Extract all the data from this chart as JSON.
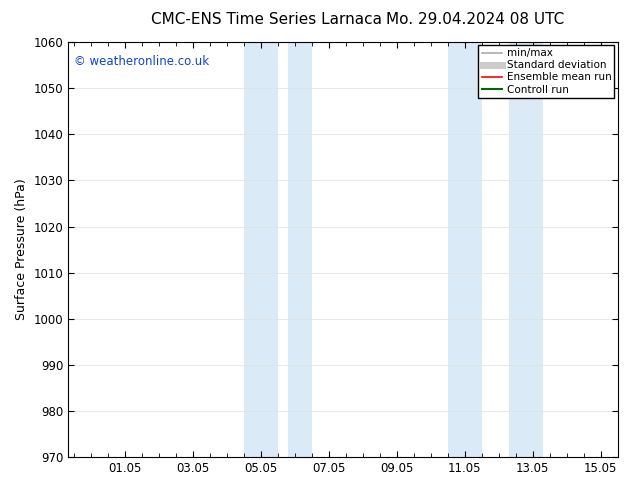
{
  "title_left": "CMC-ENS Time Series Larnaca",
  "title_right": "Mo. 29.04.2024 08 UTC",
  "ylabel": "Surface Pressure (hPa)",
  "ylim": [
    970,
    1060
  ],
  "yticks": [
    970,
    980,
    990,
    1000,
    1010,
    1020,
    1030,
    1040,
    1050,
    1060
  ],
  "xlim": [
    29.333,
    45.5
  ],
  "xtick_labels": [
    "01.05",
    "03.05",
    "05.05",
    "07.05",
    "09.05",
    "11.05",
    "13.05",
    "15.05"
  ],
  "xtick_positions": [
    31.0,
    33.0,
    35.0,
    37.0,
    39.0,
    41.0,
    43.0,
    45.0
  ],
  "shaded_bands": [
    {
      "x_start": 34.5,
      "x_end": 35.5
    },
    {
      "x_start": 35.8,
      "x_end": 36.5
    },
    {
      "x_start": 40.5,
      "x_end": 41.5
    },
    {
      "x_start": 42.3,
      "x_end": 43.3
    }
  ],
  "shaded_color": "#daeaf7",
  "watermark_text": "© weatheronline.co.uk",
  "watermark_color": "#1144cc",
  "legend_items": [
    {
      "label": "min/max",
      "color": "#aaaaaa",
      "lw": 1.2
    },
    {
      "label": "Standard deviation",
      "color": "#cccccc",
      "lw": 5
    },
    {
      "label": "Ensemble mean run",
      "color": "#ff0000",
      "lw": 1.2
    },
    {
      "label": "Controll run",
      "color": "#006600",
      "lw": 1.5
    }
  ],
  "bg_color": "#ffffff",
  "title_fontsize": 11,
  "tick_label_fontsize": 8.5,
  "axis_label_fontsize": 9
}
